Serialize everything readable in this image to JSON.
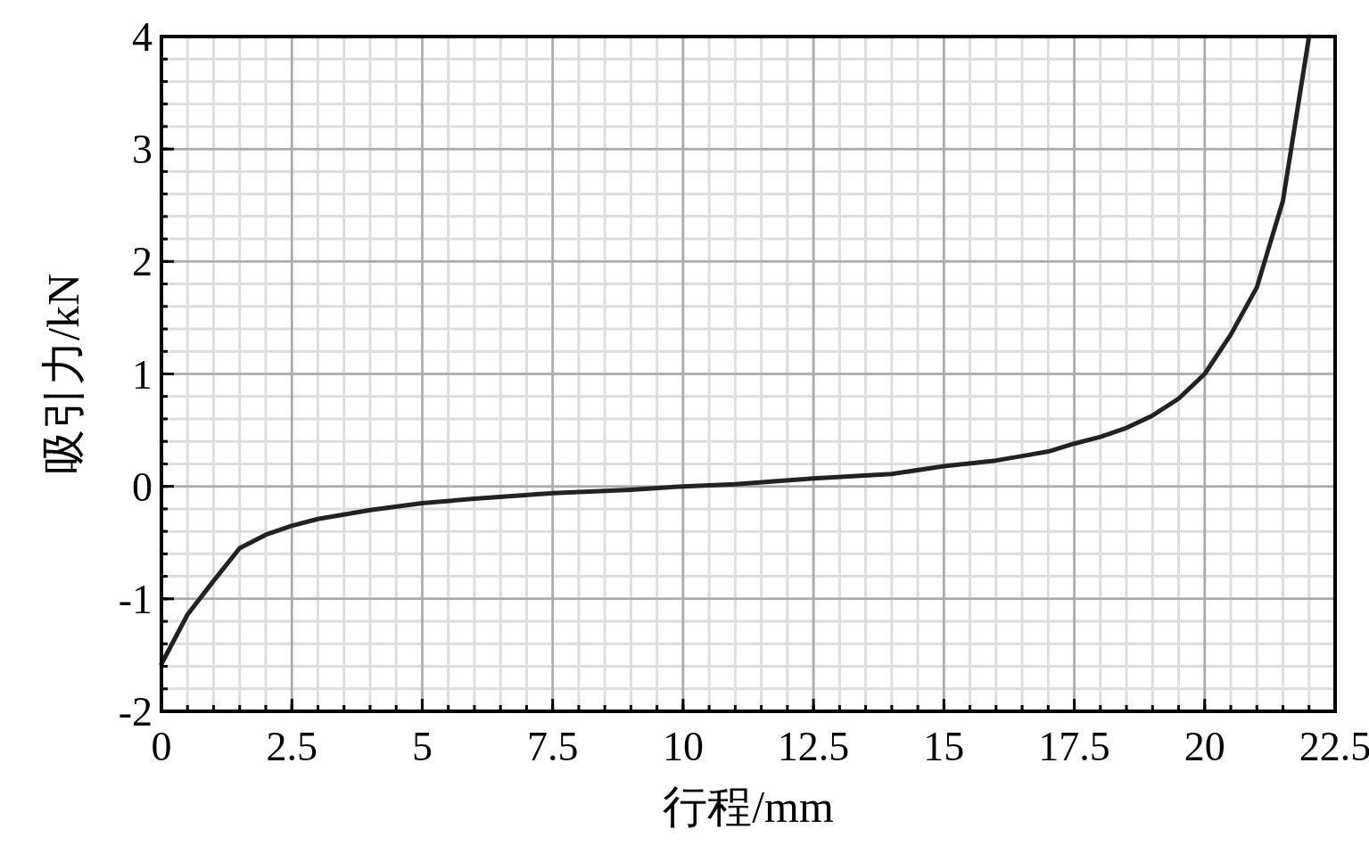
{
  "chart_data": {
    "type": "line",
    "xlabel": "行程/mm",
    "ylabel": "吸引力/kN",
    "x": [
      0,
      0.5,
      1,
      1.5,
      2,
      2.5,
      3,
      3.5,
      4,
      5,
      6,
      7.5,
      9,
      10,
      11,
      12.5,
      14,
      15,
      16,
      16.5,
      17,
      17.5,
      18,
      18.5,
      19,
      19.5,
      20,
      20.5,
      21,
      21.5,
      22
    ],
    "series": [
      {
        "color": "#222222",
        "values": [
          -1.58,
          -1.14,
          -0.84,
          -0.55,
          -0.43,
          -0.35,
          -0.29,
          -0.25,
          -0.21,
          -0.15,
          -0.11,
          -0.06,
          -0.03,
          0,
          0.02,
          0.07,
          0.11,
          0.18,
          0.23,
          0.27,
          0.31,
          0.38,
          0.44,
          0.52,
          0.63,
          0.78,
          1.0,
          1.35,
          1.77,
          2.54,
          4.0
        ]
      }
    ],
    "xlim": [
      0,
      22.5
    ],
    "xticks": [
      0,
      2.5,
      5,
      7.5,
      10,
      12.5,
      15,
      17.5,
      20,
      22.5
    ],
    "ylim": [
      -2,
      4
    ],
    "yticks": [
      -2,
      -1,
      0,
      1,
      2,
      3,
      4
    ],
    "grid": true,
    "marker": "none",
    "line_style": "solid"
  }
}
